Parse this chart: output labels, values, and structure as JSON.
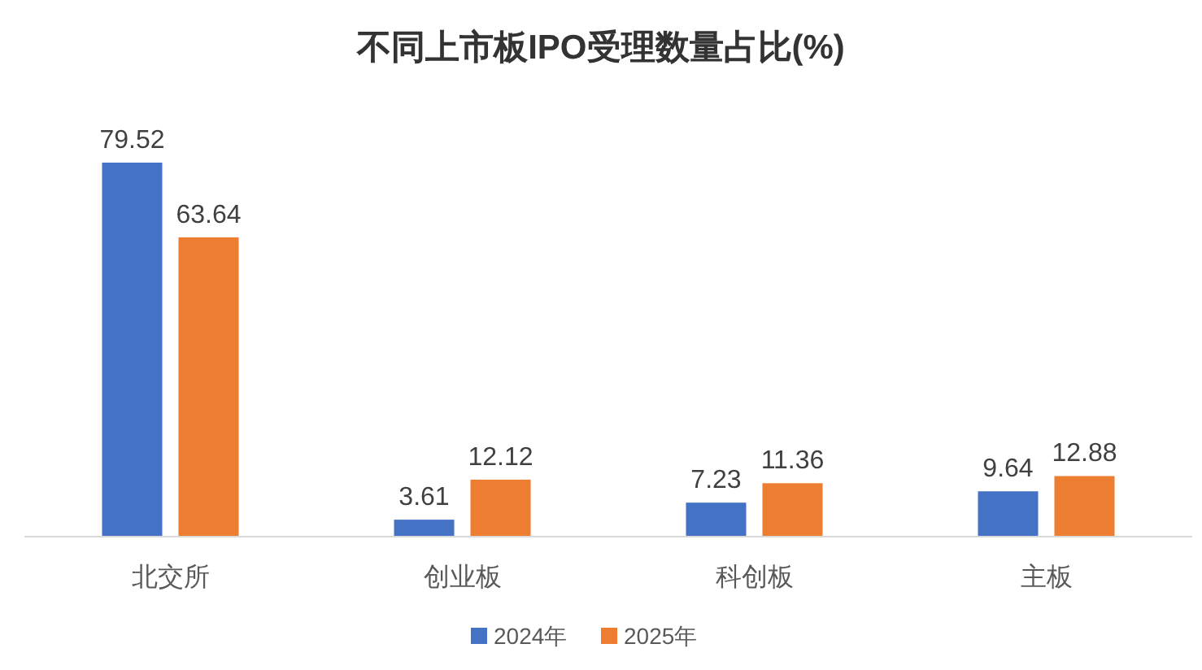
{
  "chart_data": {
    "type": "bar",
    "title": "不同上市板IPO受理数量占比(%)",
    "categories": [
      "北交所",
      "创业板",
      "科创板",
      "主板"
    ],
    "series": [
      {
        "name": "2024年",
        "color": "#4472c4",
        "values": [
          79.52,
          3.61,
          7.23,
          9.64
        ]
      },
      {
        "name": "2025年",
        "color": "#ed7d31",
        "values": [
          63.64,
          12.12,
          11.36,
          12.88
        ]
      }
    ],
    "data_labels": true,
    "legend": "bottom"
  }
}
